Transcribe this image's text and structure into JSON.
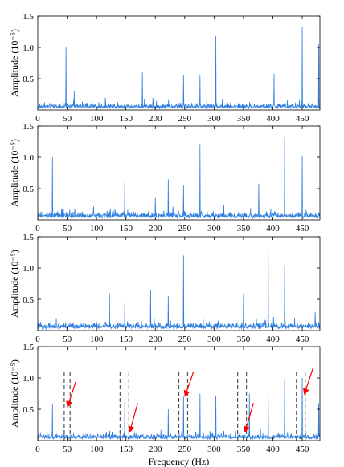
{
  "chart_data": [
    {
      "type": "line",
      "panel": 1,
      "xlabel": "",
      "ylabel": "Amplitude (10⁻⁵)",
      "xlim": [
        0,
        480
      ],
      "ylim": [
        0,
        1.5
      ],
      "x_ticks": [
        "0",
        "50",
        "100",
        "150",
        "200",
        "250",
        "300",
        "350",
        "400",
        "450"
      ],
      "y_ticks": [
        "0.5",
        "1.0",
        "1.5"
      ],
      "line_color": "#2f7fe0",
      "peaks": [
        {
          "x": 48,
          "y": 1.0
        },
        {
          "x": 62,
          "y": 0.3
        },
        {
          "x": 178,
          "y": 0.6
        },
        {
          "x": 248,
          "y": 0.55
        },
        {
          "x": 276,
          "y": 0.55
        },
        {
          "x": 303,
          "y": 1.18
        },
        {
          "x": 402,
          "y": 0.58
        },
        {
          "x": 450,
          "y": 1.32
        },
        {
          "x": 478,
          "y": 1.05
        }
      ],
      "noise_level": 0.1
    },
    {
      "type": "line",
      "panel": 2,
      "xlabel": "",
      "ylabel": "Amplitude (10⁻⁵)",
      "xlim": [
        0,
        480
      ],
      "ylim": [
        0,
        1.5
      ],
      "x_ticks": [
        "0",
        "50",
        "100",
        "150",
        "200",
        "250",
        "300",
        "350",
        "400",
        "450"
      ],
      "y_ticks": [
        "0.5",
        "1.0",
        "1.5"
      ],
      "line_color": "#2f7fe0",
      "peaks": [
        {
          "x": 25,
          "y": 1.0
        },
        {
          "x": 148,
          "y": 0.6
        },
        {
          "x": 200,
          "y": 0.35
        },
        {
          "x": 222,
          "y": 0.65
        },
        {
          "x": 248,
          "y": 0.55
        },
        {
          "x": 276,
          "y": 1.2
        },
        {
          "x": 376,
          "y": 0.58
        },
        {
          "x": 420,
          "y": 1.32
        },
        {
          "x": 450,
          "y": 1.03
        }
      ],
      "noise_level": 0.12
    },
    {
      "type": "line",
      "panel": 3,
      "xlabel": "",
      "ylabel": "Amplitude (10⁻⁵)",
      "xlim": [
        0,
        480
      ],
      "ylim": [
        0,
        1.5
      ],
      "x_ticks": [
        "0",
        "50",
        "100",
        "150",
        "200",
        "250",
        "300",
        "350",
        "400",
        "450"
      ],
      "y_ticks": [
        "0.5",
        "1.0",
        "1.5"
      ],
      "line_color": "#2f7fe0",
      "peaks": [
        {
          "x": 122,
          "y": 0.6
        },
        {
          "x": 148,
          "y": 0.45
        },
        {
          "x": 192,
          "y": 0.65
        },
        {
          "x": 222,
          "y": 0.55
        },
        {
          "x": 248,
          "y": 1.2
        },
        {
          "x": 350,
          "y": 0.58
        },
        {
          "x": 392,
          "y": 1.33
        },
        {
          "x": 420,
          "y": 1.04
        },
        {
          "x": 472,
          "y": 0.3
        }
      ],
      "noise_level": 0.12
    },
    {
      "type": "line",
      "panel": 4,
      "xlabel": "Frequency (Hz)",
      "ylabel": "Amplitude (10⁻⁵)",
      "xlim": [
        0,
        480
      ],
      "ylim": [
        0,
        1.5
      ],
      "x_ticks": [
        "0",
        "50",
        "100",
        "150",
        "200",
        "250",
        "300",
        "350",
        "400",
        "450"
      ],
      "y_ticks": [
        "0.5",
        "1.0",
        "1.5"
      ],
      "line_color": "#2f7fe0",
      "peaks": [
        {
          "x": 25,
          "y": 0.58
        },
        {
          "x": 148,
          "y": 0.62
        },
        {
          "x": 222,
          "y": 0.5
        },
        {
          "x": 248,
          "y": 0.7
        },
        {
          "x": 276,
          "y": 0.75
        },
        {
          "x": 303,
          "y": 0.72
        },
        {
          "x": 360,
          "y": 0.75
        },
        {
          "x": 392,
          "y": 0.78
        },
        {
          "x": 420,
          "y": 0.98
        },
        {
          "x": 450,
          "y": 1.0
        },
        {
          "x": 478,
          "y": 0.6
        }
      ],
      "noise_level": 0.1,
      "dashed_markers": [
        {
          "x1": 45,
          "x2": 55,
          "ymax": 1.1
        },
        {
          "x1": 140,
          "x2": 155,
          "ymax": 1.1
        },
        {
          "x1": 240,
          "x2": 255,
          "ymax": 1.1
        },
        {
          "x1": 340,
          "x2": 355,
          "ymax": 1.1
        },
        {
          "x1": 440,
          "x2": 455,
          "ymax": 1.1
        }
      ],
      "marker_color": "#555555",
      "arrows": [
        {
          "from": [
            65,
            0.95
          ],
          "to": [
            51,
            0.55
          ]
        },
        {
          "from": [
            170,
            0.6
          ],
          "to": [
            157,
            0.15
          ]
        },
        {
          "from": [
            265,
            1.1
          ],
          "to": [
            251,
            0.72
          ]
        },
        {
          "from": [
            367,
            0.6
          ],
          "to": [
            353,
            0.15
          ]
        },
        {
          "from": [
            468,
            1.15
          ],
          "to": [
            454,
            0.75
          ]
        }
      ],
      "arrow_color": "#ff0000"
    }
  ]
}
